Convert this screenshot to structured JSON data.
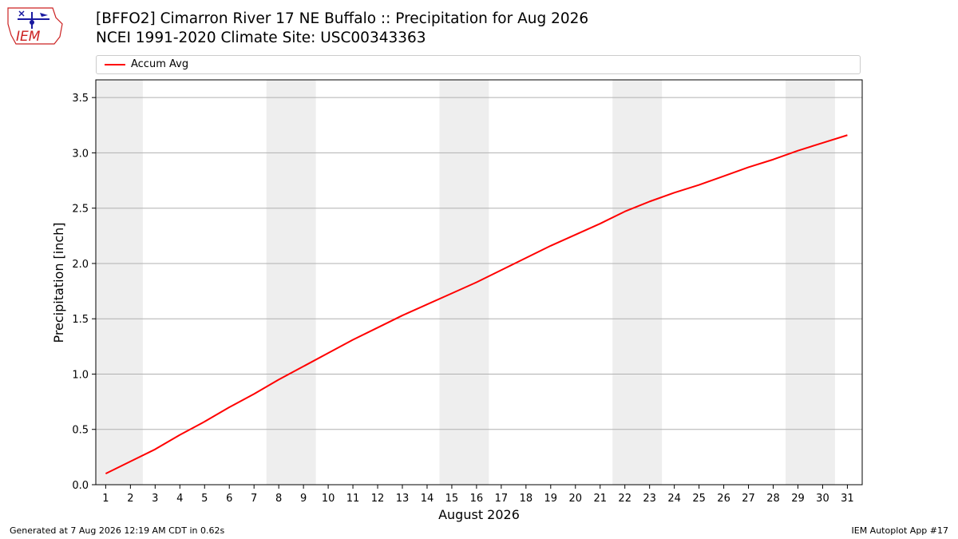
{
  "header": {
    "title_line1": "[BFFO2] Cimarron River 17 NE Buffalo :: Precipitation for Aug 2026",
    "title_line2": "NCEI 1991-2020 Climate Site: USC00343363",
    "logo_text": "IEM"
  },
  "footer": {
    "left": "Generated at 7 Aug 2026 12:19 AM CDT in 0.62s",
    "right": "IEM Autoplot App #17"
  },
  "colors": {
    "series": "#ff0000",
    "weekend_band": "#eeeeee",
    "grid": "#b0b0b0",
    "logo": "#cc2222"
  },
  "chart_data": {
    "type": "line",
    "xlabel": "August 2026",
    "ylabel": "Precipitation [inch]",
    "x": [
      1,
      2,
      3,
      4,
      5,
      6,
      7,
      8,
      9,
      10,
      11,
      12,
      13,
      14,
      15,
      16,
      17,
      18,
      19,
      20,
      21,
      22,
      23,
      24,
      25,
      26,
      27,
      28,
      29,
      30,
      31
    ],
    "xlim": [
      0.6,
      31.6
    ],
    "ylim": [
      0,
      3.66
    ],
    "yticks": [
      "0.0",
      "0.5",
      "1.0",
      "1.5",
      "2.0",
      "2.5",
      "3.0",
      "3.5"
    ],
    "xticks": [
      "1",
      "2",
      "3",
      "4",
      "5",
      "6",
      "7",
      "8",
      "9",
      "10",
      "11",
      "12",
      "13",
      "14",
      "15",
      "16",
      "17",
      "18",
      "19",
      "20",
      "21",
      "22",
      "23",
      "24",
      "25",
      "26",
      "27",
      "28",
      "29",
      "30",
      "31"
    ],
    "grid": "y",
    "legend": "top",
    "weekend_spans": [
      [
        0.5,
        2.5
      ],
      [
        7.5,
        9.5
      ],
      [
        14.5,
        16.5
      ],
      [
        21.5,
        23.5
      ],
      [
        28.5,
        30.5
      ]
    ],
    "series": [
      {
        "name": "Accum Avg",
        "values": [
          0.1,
          0.21,
          0.32,
          0.45,
          0.57,
          0.7,
          0.82,
          0.95,
          1.07,
          1.19,
          1.31,
          1.42,
          1.53,
          1.63,
          1.73,
          1.83,
          1.94,
          2.05,
          2.16,
          2.26,
          2.36,
          2.47,
          2.56,
          2.64,
          2.71,
          2.79,
          2.87,
          2.94,
          3.02,
          3.09,
          3.16
        ]
      }
    ]
  }
}
